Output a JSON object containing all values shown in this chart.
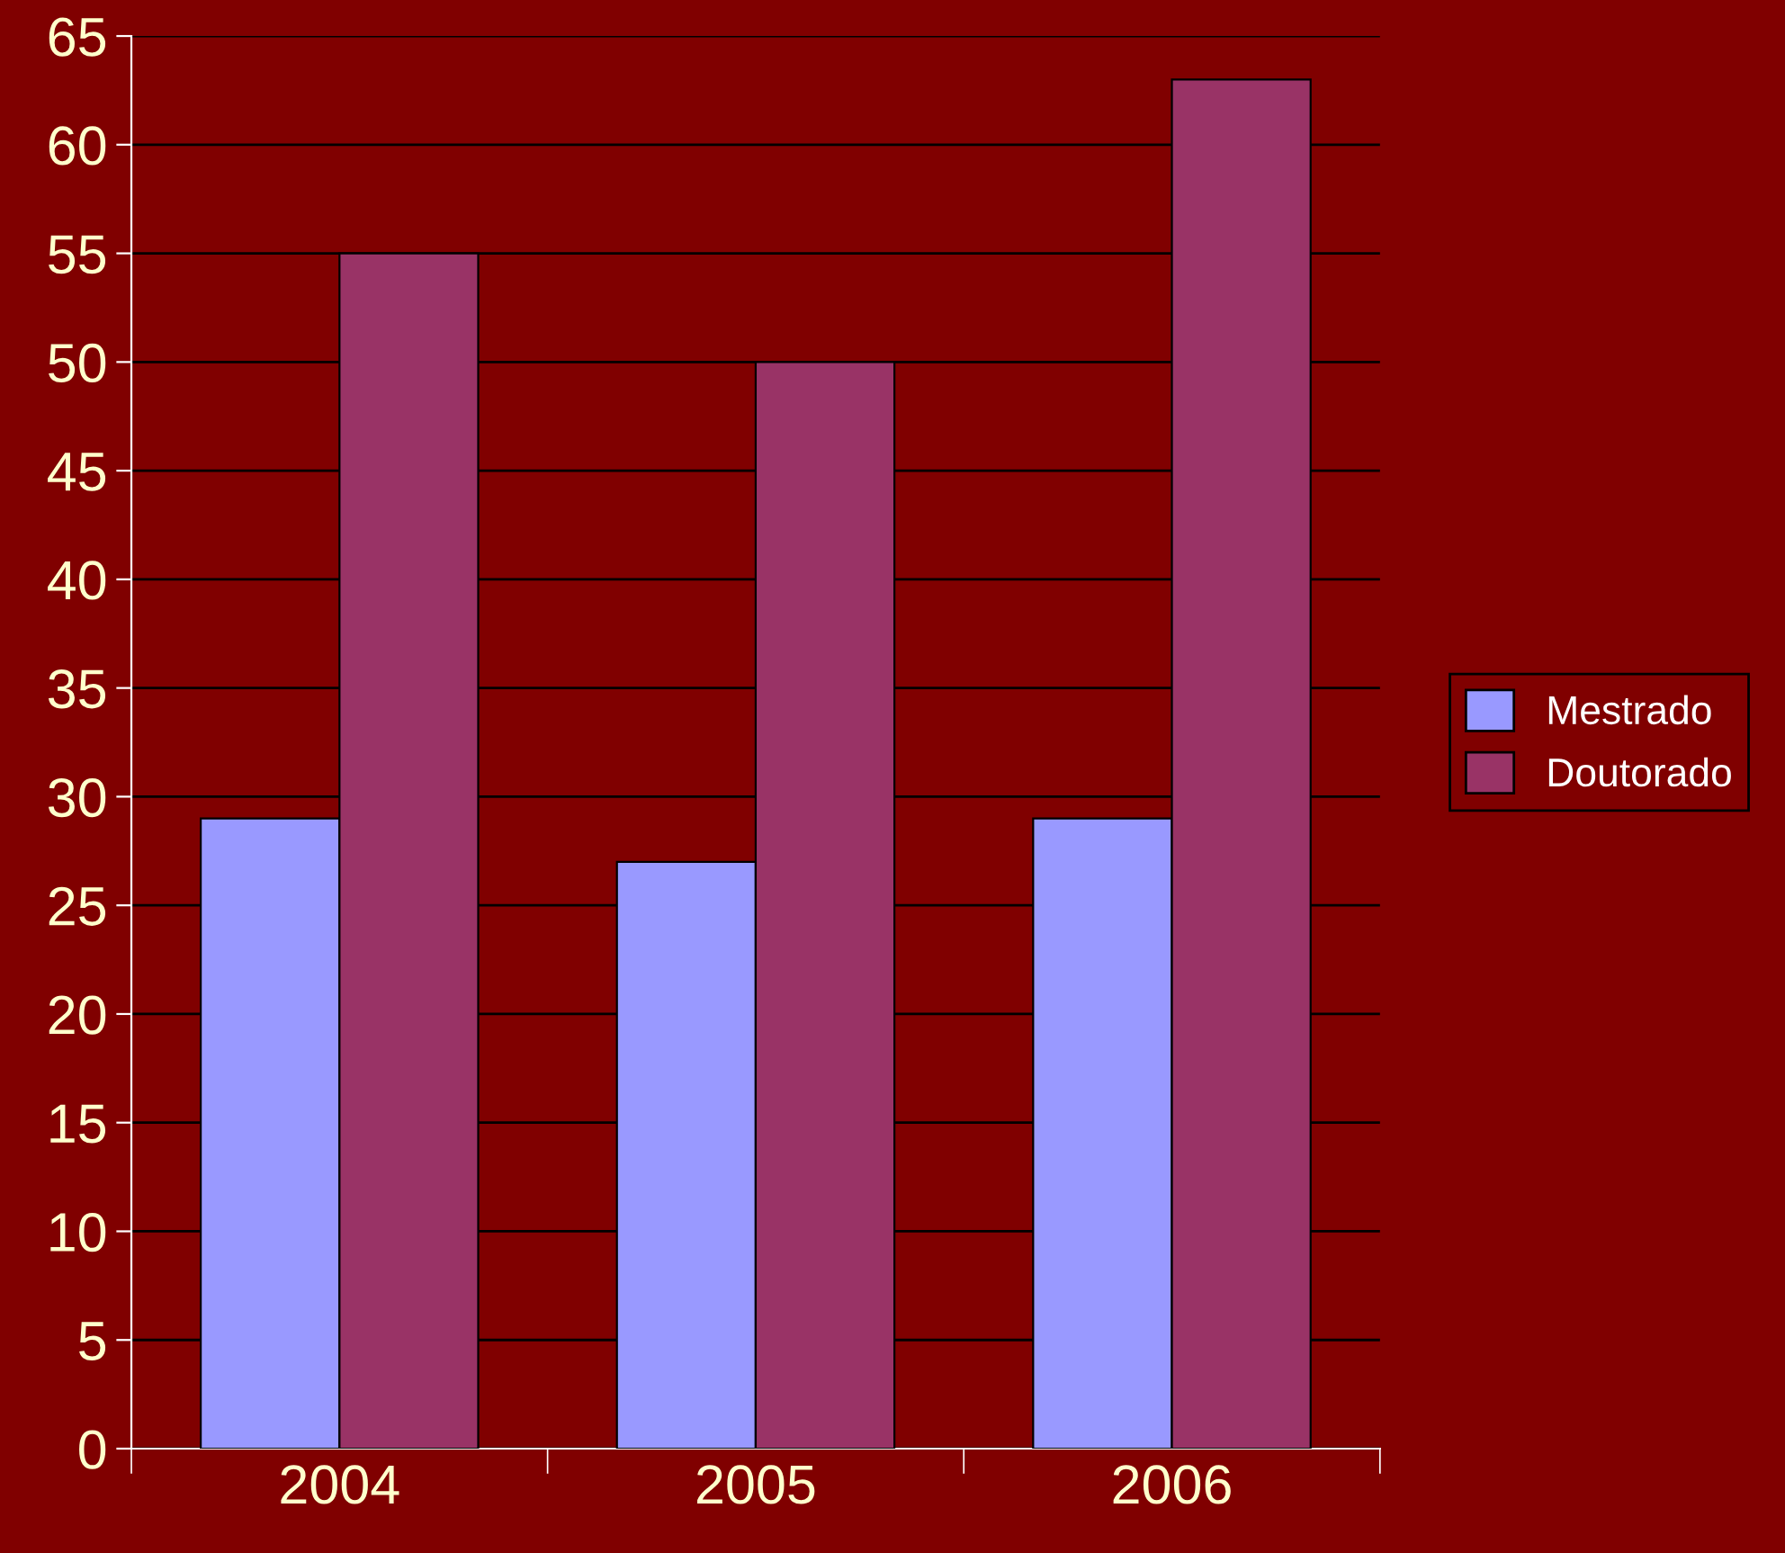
{
  "chart_data": {
    "type": "bar",
    "categories": [
      "2004",
      "2005",
      "2006"
    ],
    "series": [
      {
        "name": "Mestrado",
        "color": "#9999ff",
        "values": [
          29,
          27,
          29
        ]
      },
      {
        "name": "Doutorado",
        "color": "#993366",
        "values": [
          55,
          50,
          63
        ]
      }
    ],
    "ylim": [
      0,
      65
    ],
    "yticks": [
      0,
      5,
      10,
      15,
      20,
      25,
      30,
      35,
      40,
      45,
      50,
      55,
      60,
      65
    ],
    "grid": "y",
    "legend": "right"
  }
}
